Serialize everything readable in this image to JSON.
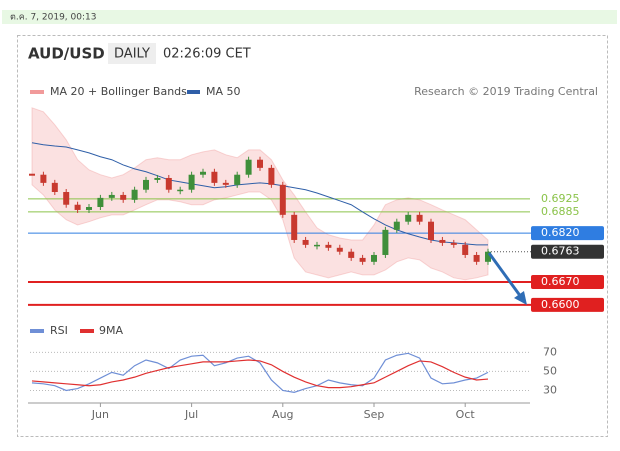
{
  "header": {
    "timestamp": "ต.ค. 7, 2019, 00:13"
  },
  "chart_data": [
    {
      "type": "candlestick",
      "title": "AUD/USD",
      "period": "DAILY",
      "time": "02:26:09 CET",
      "source": "Research © 2019 Trading Central",
      "ylim": [
        0.6569,
        0.7228
      ],
      "close": [
        0.6999,
        0.6974,
        0.6946,
        0.6907,
        0.6891,
        0.69,
        0.6928,
        0.6937,
        0.6922,
        0.6953,
        0.6983,
        0.6989,
        0.6953,
        0.6953,
        0.6999,
        0.7008,
        0.6974,
        0.6968,
        0.6999,
        0.7045,
        0.702,
        0.6968,
        0.6876,
        0.6799,
        0.6784,
        0.6784,
        0.6775,
        0.6763,
        0.6744,
        0.6732,
        0.6753,
        0.683,
        0.6855,
        0.6876,
        0.6855,
        0.6799,
        0.679,
        0.6784,
        0.6753,
        0.6732,
        0.6763
      ],
      "up_color": "#3f8f3a",
      "down_color": "#c8392f",
      "bands": {
        "name": "MA 20 + Bollinger Bands",
        "color": "#f19a9a",
        "upper": [
          0.7204,
          0.7192,
          0.7152,
          0.7106,
          0.7045,
          0.7014,
          0.6999,
          0.6989,
          0.6999,
          0.702,
          0.7045,
          0.7051,
          0.7045,
          0.7045,
          0.706,
          0.7069,
          0.7075,
          0.706,
          0.7051,
          0.7075,
          0.7075,
          0.7045,
          0.6983,
          0.6937,
          0.6885,
          0.6836,
          0.6815,
          0.6805,
          0.6799,
          0.6799,
          0.6845,
          0.6907,
          0.6922,
          0.6928,
          0.6922,
          0.6907,
          0.6891,
          0.6876,
          0.6861,
          0.683,
          0.6799
        ],
        "lower": [
          0.6968,
          0.6937,
          0.6891,
          0.6861,
          0.6845,
          0.6855,
          0.6867,
          0.6876,
          0.6876,
          0.6891,
          0.6907,
          0.6922,
          0.6922,
          0.6916,
          0.6907,
          0.6907,
          0.6922,
          0.6928,
          0.6937,
          0.6946,
          0.6946,
          0.6922,
          0.6861,
          0.6744,
          0.6701,
          0.6692,
          0.6683,
          0.6692,
          0.6701,
          0.6692,
          0.6692,
          0.6707,
          0.6732,
          0.6744,
          0.6738,
          0.6713,
          0.6701,
          0.6683,
          0.6677,
          0.6683,
          0.6692
        ]
      },
      "ma50": {
        "name": "MA 50",
        "color": "#2f5fa8",
        "values": [
          0.7097,
          0.7091,
          0.7087,
          0.7084,
          0.7075,
          0.7066,
          0.7054,
          0.7045,
          0.7029,
          0.7017,
          0.7008,
          0.6996,
          0.6983,
          0.6977,
          0.6971,
          0.6965,
          0.6959,
          0.6962,
          0.6968,
          0.6971,
          0.6974,
          0.6971,
          0.6965,
          0.6959,
          0.6953,
          0.6943,
          0.6931,
          0.6919,
          0.6907,
          0.6885,
          0.6864,
          0.6845,
          0.683,
          0.6818,
          0.6808,
          0.6799,
          0.6793,
          0.679,
          0.6787,
          0.6784,
          0.6784
        ]
      },
      "levels": [
        {
          "value": 0.6925,
          "color": "#8bc34a",
          "style": "text"
        },
        {
          "value": 0.6885,
          "color": "#8bc34a",
          "style": "text"
        },
        {
          "value": 0.682,
          "label": "0.6820",
          "color": "#2f7de1",
          "style": "box"
        },
        {
          "value": 0.6763,
          "color": "#333333",
          "style": "current"
        },
        {
          "value": 0.667,
          "label": "0.6670",
          "color": "#e02020",
          "style": "box"
        },
        {
          "value": 0.66,
          "label": "0.6600",
          "color": "#e02020",
          "style": "box"
        }
      ]
    },
    {
      "type": "line",
      "categories": [
        null,
        null,
        null,
        null,
        null,
        null,
        "Jun",
        null,
        null,
        null,
        null,
        null,
        null,
        null,
        "Jul",
        null,
        null,
        null,
        null,
        null,
        null,
        null,
        "Aug",
        null,
        null,
        null,
        null,
        null,
        null,
        null,
        "Sep",
        null,
        null,
        null,
        null,
        null,
        null,
        null,
        "Oct",
        null,
        null
      ],
      "ylim": [
        20,
        83
      ],
      "yticks": [
        30,
        50,
        70
      ],
      "series": [
        {
          "name": "RSI",
          "color": "#6f8fd6",
          "values": [
            38,
            37,
            35,
            30,
            32,
            37,
            43,
            49,
            46,
            56,
            62,
            59,
            53,
            62,
            66,
            67,
            56,
            59,
            64,
            66,
            59,
            41,
            30,
            28,
            32,
            35,
            41,
            38,
            36,
            35,
            43,
            62,
            67,
            69,
            64,
            43,
            37,
            38,
            41,
            43,
            49
          ]
        },
        {
          "name": "9MA",
          "color": "#e03030",
          "values": [
            40,
            39,
            38,
            37,
            36,
            35,
            36,
            39,
            41,
            44,
            48,
            51,
            54,
            56,
            58,
            60,
            60,
            60,
            61,
            62,
            61,
            57,
            50,
            44,
            39,
            35,
            33,
            33,
            34,
            36,
            38,
            44,
            50,
            56,
            61,
            60,
            55,
            49,
            44,
            41,
            42
          ]
        }
      ]
    }
  ]
}
